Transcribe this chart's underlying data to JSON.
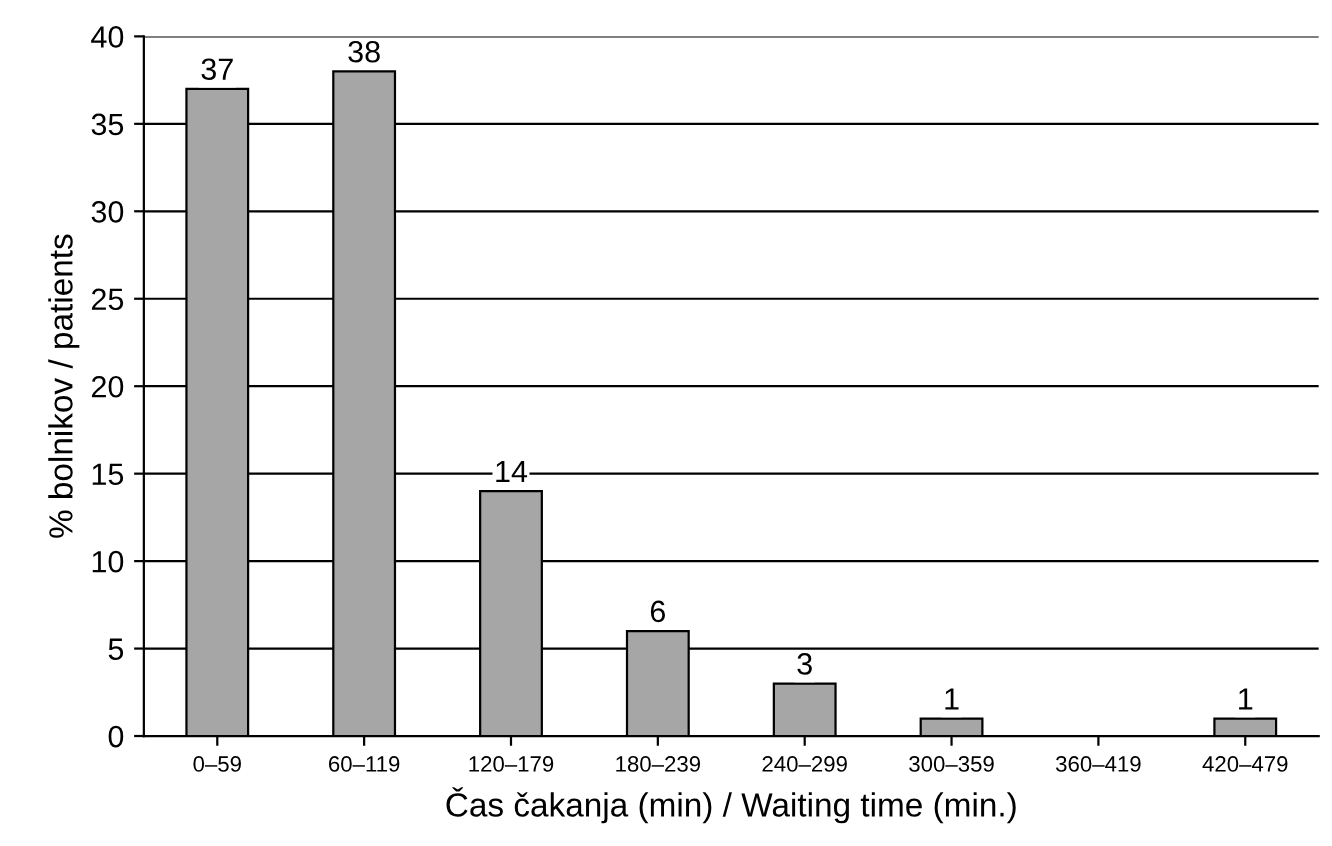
{
  "chart_data": {
    "type": "bar",
    "xlabel": "Čas čakanja (min) / Waiting time (min.)",
    "ylabel": "% bolnikov / patients",
    "categories": [
      "0–59",
      "60–119",
      "120–179",
      "180–239",
      "240–299",
      "300–359",
      "360–419",
      "420–479"
    ],
    "values": [
      37,
      38,
      14,
      6,
      3,
      1,
      null,
      1
    ],
    "value_labels": [
      "37",
      "38",
      "14",
      "6",
      "3",
      "1",
      null,
      "1"
    ],
    "color": "#a6a6a6",
    "ylim": [
      0,
      40
    ],
    "yticks": [
      0,
      5,
      10,
      15,
      20,
      25,
      30,
      35,
      40
    ],
    "grid": "y"
  }
}
